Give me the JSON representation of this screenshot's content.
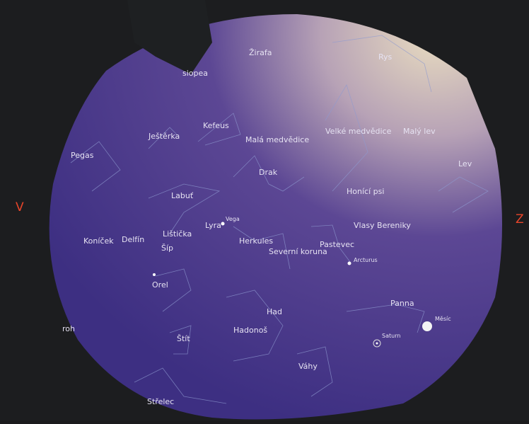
{
  "directions": [
    "V",
    "Z"
  ],
  "constellations": [
    "Žirafa",
    "siopea",
    "Rys",
    "Kefeus",
    "Ještěrka",
    "Malá medvědice",
    "Velké medvědice",
    "Malý lev",
    "Pegas",
    "Lev",
    "Drak",
    "Honící psi",
    "Labuť",
    "Lyra",
    "Lištička",
    "Vlasy Bereniky",
    "Koníček",
    "Delfín",
    "Herkules",
    "Pastevec",
    "Šíp",
    "Severní koruna",
    "Orel",
    "Panna",
    "Had",
    "Hadonoš",
    "roh",
    "Štít",
    "Váhy",
    "Střelec"
  ],
  "objects": [
    "Vega",
    "Arcturus",
    "Měsíc",
    "Saturn"
  ]
}
